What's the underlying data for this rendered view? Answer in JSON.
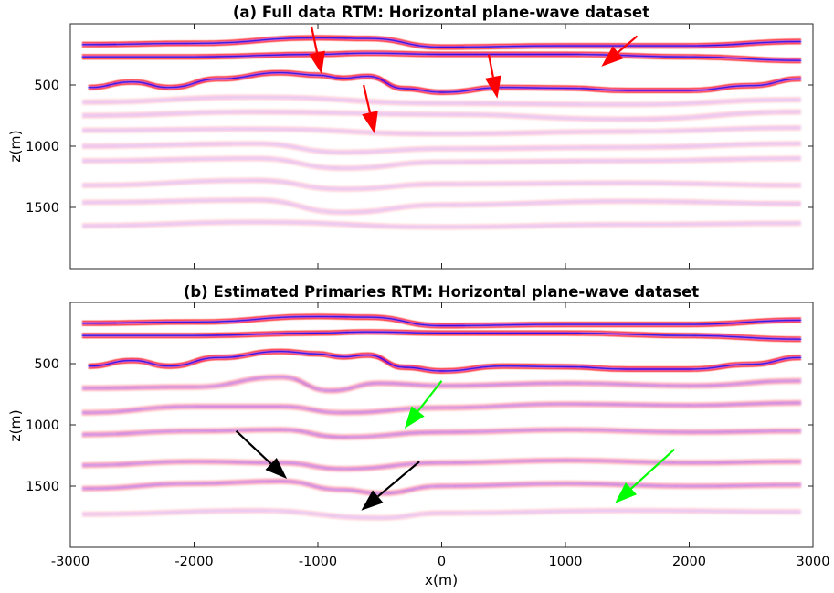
{
  "chart_data": [
    {
      "type": "heatmap",
      "title": "(a) Full data RTM: Horizontal plane-wave dataset",
      "xlabel": "",
      "ylabel": "z(m)",
      "xlim": [
        -3000,
        3000
      ],
      "ylim": [
        0,
        2000
      ],
      "y_inverted": true,
      "yticks": [
        500,
        1000,
        1500
      ],
      "yticklabels": [
        "500",
        "1000",
        "1500"
      ],
      "xticks": [
        -3000,
        -2000,
        -1000,
        0,
        1000,
        2000,
        3000
      ],
      "xticklabels": [],
      "colormap": "red-white-blue",
      "reflectors": [
        {
          "kind": "strong",
          "x": [
            -2900,
            -2000,
            -1000,
            -600,
            0,
            1000,
            2000,
            2900
          ],
          "z": [
            170,
            160,
            115,
            120,
            190,
            180,
            180,
            145
          ]
        },
        {
          "kind": "strong",
          "x": [
            -2900,
            -2000,
            -1000,
            -600,
            0,
            1000,
            2000,
            2900
          ],
          "z": [
            270,
            270,
            250,
            240,
            250,
            250,
            270,
            300
          ]
        },
        {
          "kind": "strong",
          "x": [
            -2850,
            -2500,
            -2200,
            -1800,
            -1300,
            -1000,
            -800,
            -600,
            -300,
            0,
            500,
            1000,
            1500,
            2000,
            2500,
            2900
          ],
          "z": [
            520,
            475,
            520,
            450,
            400,
            420,
            445,
            430,
            530,
            560,
            520,
            525,
            545,
            545,
            505,
            450
          ]
        },
        {
          "kind": "weak",
          "x": [
            -2900,
            -1500,
            0,
            1500,
            2900
          ],
          "z": [
            640,
            600,
            650,
            660,
            620
          ]
        },
        {
          "kind": "weak",
          "x": [
            -2900,
            -1500,
            0,
            1500,
            2900
          ],
          "z": [
            750,
            720,
            740,
            780,
            720
          ]
        },
        {
          "kind": "weak",
          "x": [
            -2900,
            -1500,
            0,
            1500,
            2900
          ],
          "z": [
            870,
            860,
            900,
            880,
            850
          ]
        },
        {
          "kind": "weak",
          "x": [
            -2900,
            -1500,
            -800,
            0,
            1500,
            2900
          ],
          "z": [
            1000,
            980,
            1050,
            1020,
            1010,
            980
          ]
        },
        {
          "kind": "weak",
          "x": [
            -2900,
            -1500,
            -800,
            0,
            1500,
            2900
          ],
          "z": [
            1120,
            1100,
            1180,
            1130,
            1120,
            1100
          ]
        },
        {
          "kind": "weak",
          "x": [
            -2900,
            -1500,
            -800,
            0,
            1500,
            2900
          ],
          "z": [
            1320,
            1280,
            1350,
            1310,
            1300,
            1320
          ]
        },
        {
          "kind": "weak",
          "x": [
            -2900,
            -1500,
            -800,
            0,
            1500,
            2900
          ],
          "z": [
            1460,
            1440,
            1540,
            1480,
            1450,
            1470
          ]
        },
        {
          "kind": "weak",
          "x": [
            -2900,
            -1500,
            0,
            1500,
            2900
          ],
          "z": [
            1650,
            1620,
            1660,
            1640,
            1630
          ]
        }
      ],
      "annotations": [
        {
          "color": "#ff0000",
          "from": [
            -1050,
            30
          ],
          "to": [
            -970,
            410
          ]
        },
        {
          "color": "#ff0000",
          "from": [
            -630,
            500
          ],
          "to": [
            -540,
            900
          ]
        },
        {
          "color": "#ff0000",
          "from": [
            380,
            250
          ],
          "to": [
            450,
            610
          ]
        },
        {
          "color": "#ff0000",
          "from": [
            1580,
            100
          ],
          "to": [
            1290,
            350
          ]
        }
      ]
    },
    {
      "type": "heatmap",
      "title": "(b) Estimated Primaries RTM: Horizontal plane-wave dataset",
      "xlabel": "x(m)",
      "ylabel": "z(m)",
      "xlim": [
        -3000,
        3000
      ],
      "ylim": [
        0,
        2000
      ],
      "y_inverted": true,
      "yticks": [
        500,
        1000,
        1500
      ],
      "yticklabels": [
        "500",
        "1000",
        "1500"
      ],
      "xticks": [
        -3000,
        -2000,
        -1000,
        0,
        1000,
        2000,
        3000
      ],
      "xticklabels": [
        "-3000",
        "-2000",
        "-1000",
        "0",
        "1000",
        "2000",
        "3000"
      ],
      "colormap": "red-white-blue",
      "reflectors": [
        {
          "kind": "strong",
          "x": [
            -2900,
            -2000,
            -1000,
            -600,
            0,
            1000,
            2000,
            2900
          ],
          "z": [
            170,
            160,
            115,
            120,
            190,
            180,
            180,
            145
          ]
        },
        {
          "kind": "strong",
          "x": [
            -2900,
            -2000,
            -1000,
            -600,
            0,
            1000,
            2000,
            2900
          ],
          "z": [
            270,
            270,
            250,
            240,
            250,
            250,
            270,
            300
          ]
        },
        {
          "kind": "strong",
          "x": [
            -2850,
            -2500,
            -2200,
            -1800,
            -1300,
            -1000,
            -800,
            -600,
            -300,
            0,
            500,
            1000,
            1500,
            2000,
            2500,
            2900
          ],
          "z": [
            520,
            475,
            520,
            450,
            400,
            420,
            445,
            430,
            530,
            560,
            520,
            525,
            545,
            545,
            505,
            450
          ]
        },
        {
          "kind": "medium",
          "x": [
            -2900,
            -2000,
            -1300,
            -900,
            -500,
            0,
            1000,
            2000,
            2900
          ],
          "z": [
            700,
            690,
            610,
            720,
            660,
            680,
            660,
            680,
            640
          ]
        },
        {
          "kind": "medium",
          "x": [
            -2900,
            -2000,
            -1300,
            -800,
            0,
            1000,
            2000,
            2900
          ],
          "z": [
            900,
            850,
            850,
            900,
            860,
            830,
            840,
            820
          ]
        },
        {
          "kind": "medium",
          "x": [
            -2900,
            -2000,
            -1300,
            -800,
            0,
            1000,
            2000,
            2900
          ],
          "z": [
            1080,
            1050,
            1040,
            1100,
            1060,
            1040,
            1060,
            1050
          ]
        },
        {
          "kind": "medium",
          "x": [
            -2900,
            -2000,
            -1300,
            -800,
            0,
            1000,
            2000,
            2900
          ],
          "z": [
            1330,
            1300,
            1310,
            1360,
            1310,
            1290,
            1310,
            1300
          ]
        },
        {
          "kind": "medium",
          "x": [
            -2900,
            -2000,
            -1300,
            -800,
            -500,
            0,
            1000,
            2000,
            2900
          ],
          "z": [
            1520,
            1480,
            1460,
            1530,
            1560,
            1500,
            1480,
            1500,
            1490
          ]
        },
        {
          "kind": "weak",
          "x": [
            -2900,
            -1500,
            -500,
            0,
            1500,
            2900
          ],
          "z": [
            1730,
            1700,
            1760,
            1720,
            1700,
            1710
          ]
        }
      ],
      "annotations": [
        {
          "color": "#000000",
          "from": [
            -1660,
            1050
          ],
          "to": [
            -1250,
            1440
          ]
        },
        {
          "color": "#000000",
          "from": [
            -180,
            1300
          ],
          "to": [
            -650,
            1700
          ]
        },
        {
          "color": "#00ff00",
          "from": [
            0,
            640
          ],
          "to": [
            -300,
            1030
          ]
        },
        {
          "color": "#00ff00",
          "from": [
            1880,
            1200
          ],
          "to": [
            1400,
            1640
          ]
        }
      ]
    }
  ]
}
